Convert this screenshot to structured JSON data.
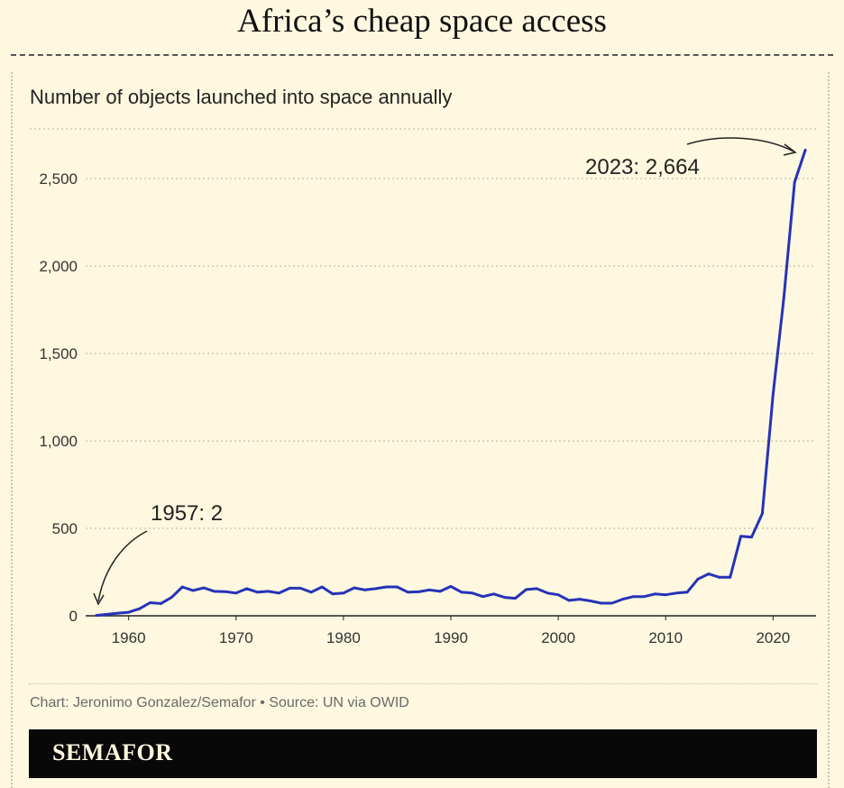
{
  "header": {
    "title": "Africa’s cheap space access"
  },
  "chart_data": {
    "type": "line",
    "title": "Number of objects launched into space annually",
    "xlabel": "",
    "ylabel": "",
    "xlim": [
      1956,
      2024
    ],
    "ylim": [
      0,
      2800
    ],
    "x_ticks": [
      1960,
      1970,
      1980,
      1990,
      2000,
      2010,
      2020
    ],
    "y_ticks": [
      0,
      500,
      1000,
      1500,
      2000,
      2500
    ],
    "y_tick_labels": [
      "0",
      "500",
      "1,000",
      "1,500",
      "2,000",
      "2,500"
    ],
    "grid": "horizontal",
    "line_color": "#2633b8",
    "series": [
      {
        "name": "",
        "x": [
          1957,
          1958,
          1959,
          1960,
          1961,
          1962,
          1963,
          1964,
          1965,
          1966,
          1967,
          1968,
          1969,
          1970,
          1971,
          1972,
          1973,
          1974,
          1975,
          1976,
          1977,
          1978,
          1979,
          1980,
          1981,
          1982,
          1983,
          1984,
          1985,
          1986,
          1987,
          1988,
          1989,
          1990,
          1991,
          1992,
          1993,
          1994,
          1995,
          1996,
          1997,
          1998,
          1999,
          2000,
          2001,
          2002,
          2003,
          2004,
          2005,
          2006,
          2007,
          2008,
          2009,
          2010,
          2011,
          2012,
          2013,
          2014,
          2015,
          2016,
          2017,
          2018,
          2019,
          2020,
          2021,
          2022,
          2023
        ],
        "y": [
          2,
          8,
          15,
          20,
          40,
          75,
          70,
          105,
          165,
          145,
          160,
          140,
          138,
          130,
          155,
          135,
          140,
          130,
          158,
          158,
          135,
          165,
          125,
          130,
          160,
          148,
          155,
          165,
          165,
          135,
          137,
          148,
          140,
          168,
          135,
          130,
          110,
          125,
          105,
          100,
          150,
          155,
          130,
          120,
          88,
          95,
          85,
          72,
          72,
          95,
          110,
          110,
          125,
          120,
          130,
          135,
          210,
          240,
          220,
          220,
          455,
          450,
          585,
          1270,
          1820,
          2480,
          2664
        ]
      }
    ],
    "annotations": [
      {
        "text": "1957: 2",
        "x": 1957,
        "y": 2
      },
      {
        "text": "2023: 2,664",
        "x": 2023,
        "y": 2664
      }
    ]
  },
  "footer": {
    "credit": "Chart: Jeronimo Gonzalez/Semafor • Source: UN via OWID",
    "brand": "SEMAFOR"
  }
}
